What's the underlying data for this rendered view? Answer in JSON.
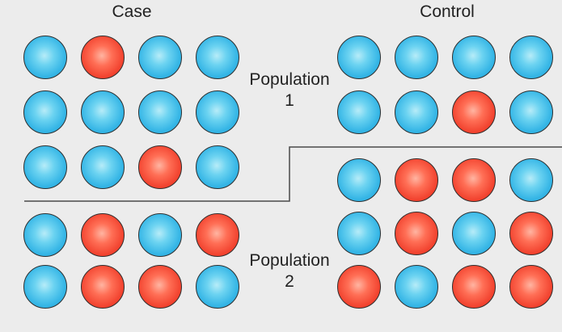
{
  "headers": {
    "case": "Case",
    "control": "Control"
  },
  "populations": [
    {
      "line1": "Population",
      "line2": "1"
    },
    {
      "line1": "Population",
      "line2": "2"
    }
  ],
  "colors": {
    "carrier": "#f2432f",
    "non_carrier": "#36b6e6",
    "background": "#ececec",
    "divider": "#4a4a4a"
  },
  "groups": [
    {
      "name": "population-1-case",
      "rows": [
        [
          "blue",
          "red",
          "blue",
          "blue"
        ],
        [
          "blue",
          "blue",
          "blue",
          "blue"
        ],
        [
          "blue",
          "blue",
          "red",
          "blue"
        ]
      ]
    },
    {
      "name": "population-1-control",
      "rows": [
        [
          "blue",
          "blue",
          "blue",
          "blue"
        ],
        [
          "blue",
          "blue",
          "red",
          "blue"
        ]
      ]
    },
    {
      "name": "population-2-case",
      "rows": [
        [
          "blue",
          "red",
          "blue",
          "red"
        ],
        [
          "blue",
          "red",
          "red",
          "blue"
        ]
      ]
    },
    {
      "name": "population-2-control",
      "rows": [
        [
          "blue",
          "red",
          "red",
          "blue"
        ],
        [
          "blue",
          "red",
          "blue",
          "red"
        ],
        [
          "red",
          "blue",
          "red",
          "red"
        ]
      ]
    }
  ]
}
